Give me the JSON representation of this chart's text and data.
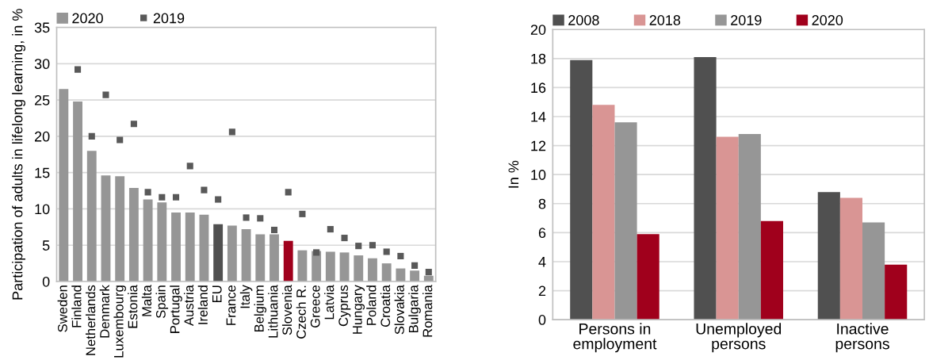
{
  "chart_data": [
    {
      "type": "bar",
      "ylabel": "Participation of adults in lifelong learning, in %",
      "categories": [
        "Sweden",
        "Finland",
        "Netherlands",
        "Denmark",
        "Luxembourg",
        "Estonia",
        "Malta",
        "Spain",
        "Portugal",
        "Austria",
        "Ireland",
        "EU",
        "France",
        "Italy",
        "Belgium",
        "Lithuania",
        "Slovenia",
        "Czech R.",
        "Greece",
        "Latvia",
        "Cyprus",
        "Hungary",
        "Poland",
        "Croatia",
        "Slovakia",
        "Bulgaria",
        "Romania"
      ],
      "series": [
        {
          "name": "2020",
          "type": "bar",
          "color": "#969696",
          "colors": [
            "#969696",
            "#969696",
            "#969696",
            "#969696",
            "#969696",
            "#969696",
            "#969696",
            "#969696",
            "#969696",
            "#969696",
            "#969696",
            "#505050",
            "#969696",
            "#969696",
            "#969696",
            "#969696",
            "#a0001c",
            "#969696",
            "#969696",
            "#969696",
            "#969696",
            "#969696",
            "#969696",
            "#969696",
            "#969696",
            "#969696",
            "#969696"
          ],
          "values": [
            26.5,
            24.8,
            18.0,
            14.6,
            14.5,
            12.9,
            11.3,
            10.9,
            9.5,
            9.5,
            9.2,
            7.9,
            7.7,
            7.2,
            6.5,
            6.5,
            5.6,
            4.3,
            4.2,
            4.1,
            4.0,
            3.6,
            3.2,
            2.5,
            1.8,
            1.5,
            0.8
          ]
        },
        {
          "name": "2019",
          "type": "scatter",
          "marker": "square",
          "color": "#595959",
          "values": [
            null,
            29.2,
            20.0,
            25.7,
            19.5,
            21.7,
            12.3,
            11.6,
            11.6,
            15.9,
            12.6,
            11.3,
            20.6,
            8.8,
            8.7,
            7.1,
            12.3,
            9.3,
            4.0,
            7.2,
            6.0,
            4.9,
            5.0,
            4.1,
            3.5,
            2.2,
            1.3
          ]
        }
      ],
      "ylim": [
        0,
        35
      ],
      "yticks": [
        0,
        5,
        10,
        15,
        20,
        25,
        30,
        35
      ],
      "grid": "y",
      "legend": "top left"
    },
    {
      "type": "bar",
      "ylabel": "In %",
      "categories": [
        "Persons in\nemployment",
        "Unemployed\npersons",
        "Inactive\npersons"
      ],
      "series": [
        {
          "name": "2008",
          "color": "#505050",
          "values": [
            17.9,
            18.1,
            8.8
          ]
        },
        {
          "name": "2018",
          "color": "#d99594",
          "values": [
            14.8,
            12.6,
            8.4
          ]
        },
        {
          "name": "2019",
          "color": "#969696",
          "values": [
            13.6,
            12.8,
            6.7
          ]
        },
        {
          "name": "2020",
          "color": "#a0001c",
          "values": [
            5.9,
            6.8,
            3.8
          ]
        }
      ],
      "ylim": [
        0,
        20
      ],
      "yticks": [
        0,
        2,
        4,
        6,
        8,
        10,
        12,
        14,
        16,
        18,
        20
      ],
      "grid": "y",
      "legend": "top left"
    }
  ]
}
